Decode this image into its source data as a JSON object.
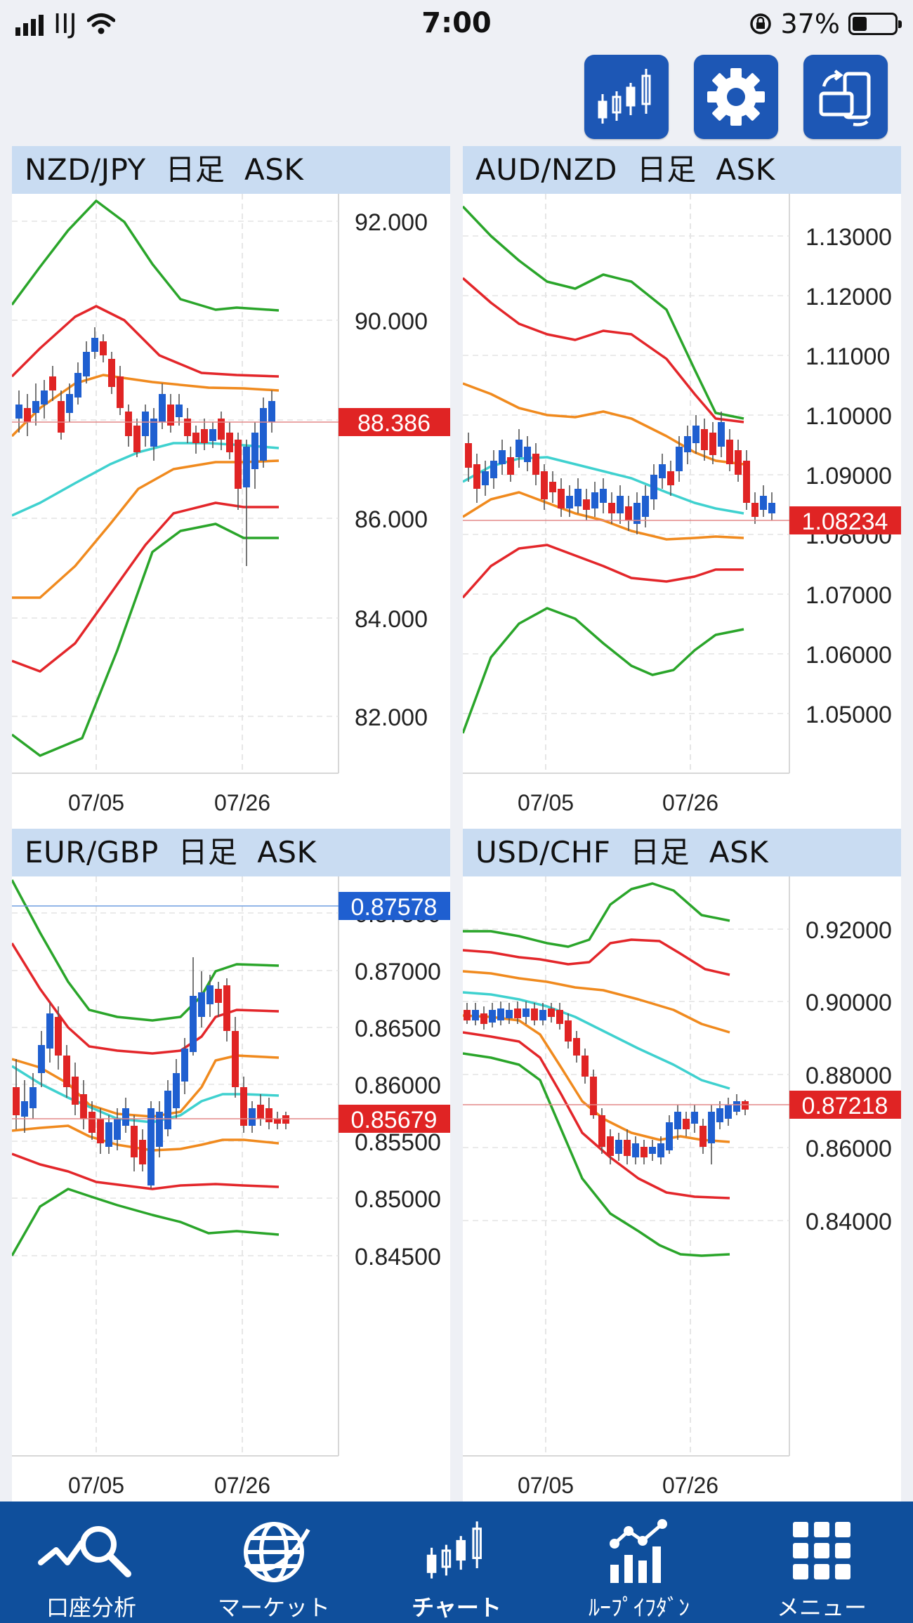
{
  "status": {
    "carrier": "IIJ",
    "time": "7:00",
    "battery": "37%"
  },
  "toolbar": {
    "chart_type_icon": "candlestick-chart-icon",
    "settings_icon": "gear-icon",
    "rotate_icon": "rotate-device-icon",
    "button_color": "#1d57b5"
  },
  "colors": {
    "bull": "#1f5fd0",
    "bear": "#e02424",
    "sma": "#3fd1cf",
    "band1": "#f08a1e",
    "band2": "#e3262a",
    "band3": "#2aa52a",
    "ask_tag_red": "#e02424",
    "ask_tag_blue": "#1f5fd0"
  },
  "panels": [
    {
      "header": "NZD/JPY  日足  ASK",
      "ticks": [
        "92.000",
        "90.000",
        "88.000",
        "86.000",
        "84.000",
        "82.000"
      ],
      "x_labels": [
        "07/05",
        "07/26"
      ],
      "price": "88.386",
      "price_tag_color": "#e02424"
    },
    {
      "header": "AUD/NZD  日足  ASK",
      "ticks": [
        "1.13000",
        "1.12000",
        "1.11000",
        "1.10000",
        "1.09000",
        "1.08000",
        "1.07000",
        "1.06000",
        "1.05000"
      ],
      "x_labels": [
        "07/05",
        "07/26"
      ],
      "price": "1.08234",
      "price_tag_color": "#e02424"
    },
    {
      "header": "EUR/GBP  日足  ASK",
      "ticks": [
        "0.87500",
        "0.87000",
        "0.86500",
        "0.86000",
        "0.85500",
        "0.85000",
        "0.84500"
      ],
      "x_labels": [
        "07/05",
        "07/26"
      ],
      "price": "0.85679",
      "price_tag_color": "#e02424",
      "upper_line_price": "0.87578",
      "upper_line_tag_color": "#1f5fd0"
    },
    {
      "header": "USD/CHF  日足  ASK",
      "ticks": [
        "0.92000",
        "0.90000",
        "0.88000",
        "0.86000",
        "0.84000"
      ],
      "x_labels": [
        "07/05",
        "07/26"
      ],
      "price": "0.87218",
      "price_tag_color": "#e02424"
    }
  ],
  "tabs": [
    {
      "label": "口座分析",
      "icon": "account-analysis-icon"
    },
    {
      "label": "マーケット",
      "icon": "globe-icon"
    },
    {
      "label": "チャート",
      "icon": "candlestick-chart-icon"
    },
    {
      "label": "ﾙｰﾌﾟｲﾌﾀﾞﾝ",
      "icon": "loop-ifdone-icon"
    },
    {
      "label": "メニュー",
      "icon": "menu-grid-icon"
    }
  ]
}
